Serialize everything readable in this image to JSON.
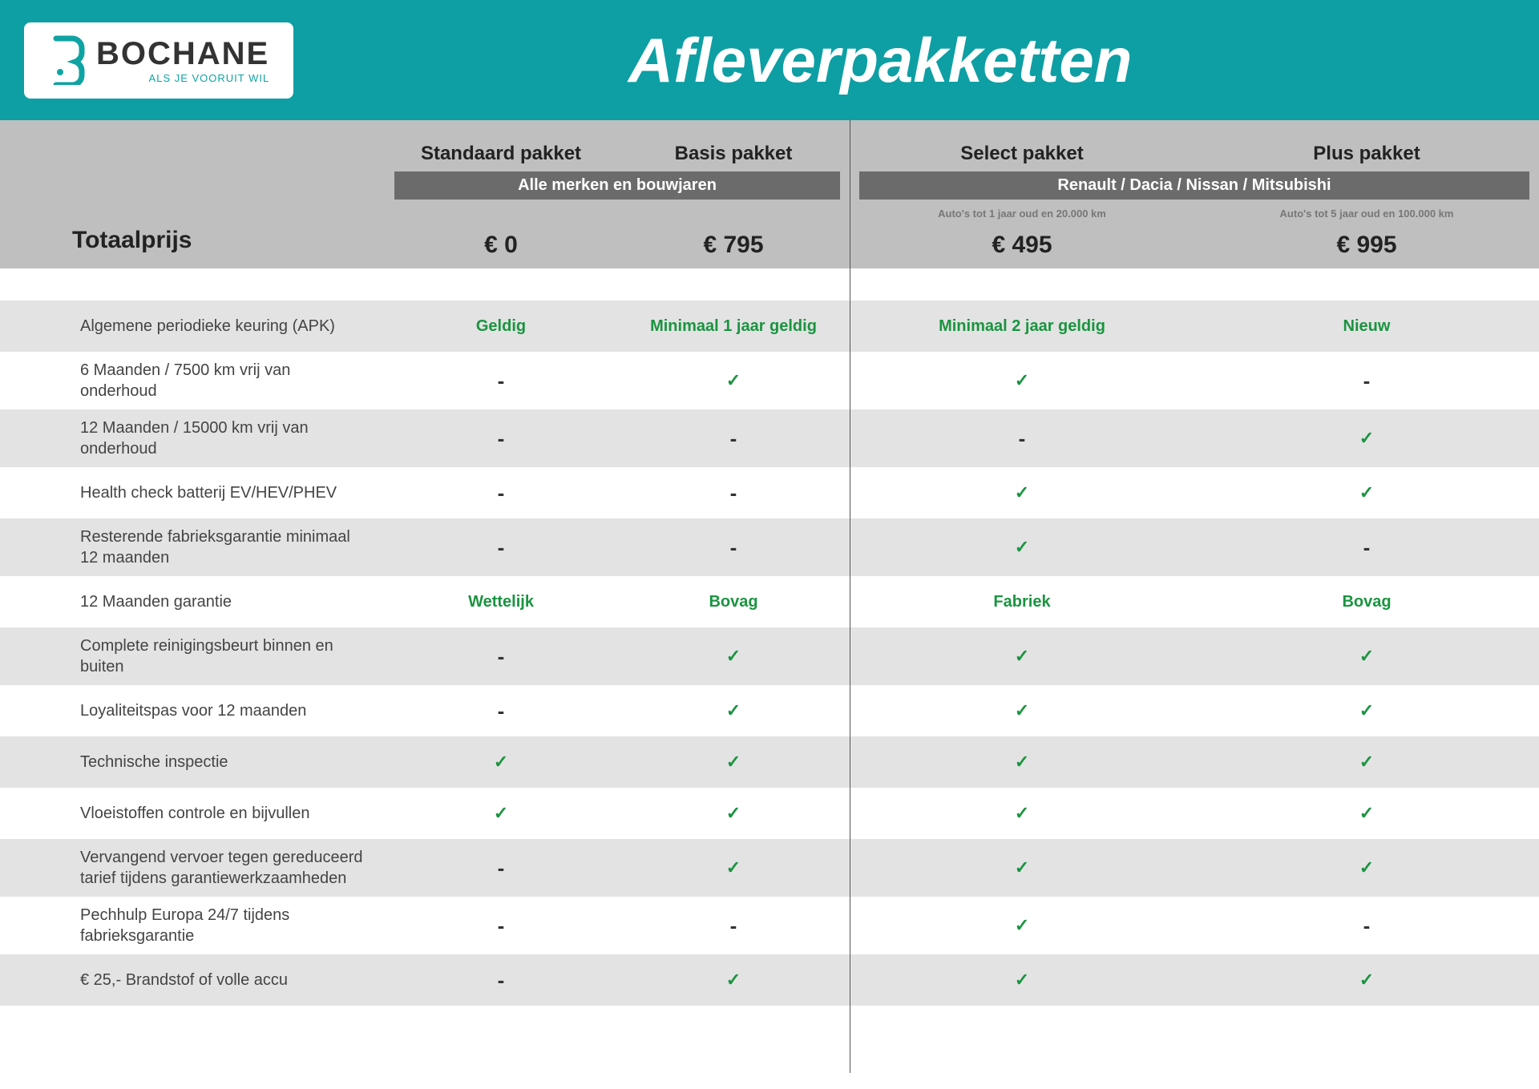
{
  "colors": {
    "header_bg": "#0d9fa3",
    "thead_bg": "#bfbfbf",
    "group_bar_bg": "#6b6b6b",
    "row_alt_bg": "#e3e3e3",
    "accent_green": "#1a9440",
    "text_dark": "#222222",
    "text_muted": "#555555"
  },
  "logo": {
    "name": "BOCHANE",
    "tagline": "ALS JE VOORUIT WIL"
  },
  "title": "Afleverpakketten",
  "row_header": "Totaalprijs",
  "columns": [
    {
      "name": "Standaard pakket",
      "subnote": "",
      "price": "€ 0"
    },
    {
      "name": "Basis pakket",
      "subnote": "",
      "price": "€ 795"
    },
    {
      "name": "Select pakket",
      "subnote": "Auto's tot 1 jaar oud en 20.000 km",
      "price": "€ 495"
    },
    {
      "name": "Plus pakket",
      "subnote": "Auto's tot 5 jaar oud en 100.000 km",
      "price": "€ 995"
    }
  ],
  "groups": [
    {
      "label": "Alle merken en bouwjaren",
      "span_cols": [
        0,
        1
      ]
    },
    {
      "label": "Renault / Dacia / Nissan / Mitsubishi",
      "span_cols": [
        2,
        3
      ]
    }
  ],
  "rows": [
    {
      "label": "Algemene periodieke keuring (APK)",
      "cells": [
        {
          "type": "text",
          "value": "Geldig"
        },
        {
          "type": "text",
          "value": "Minimaal 1 jaar geldig"
        },
        {
          "type": "text",
          "value": "Minimaal 2 jaar geldig"
        },
        {
          "type": "text",
          "value": "Nieuw"
        }
      ],
      "shade": true
    },
    {
      "label": "6 Maanden / 7500 km vrij van onderhoud",
      "cells": [
        {
          "type": "dash"
        },
        {
          "type": "check"
        },
        {
          "type": "check"
        },
        {
          "type": "dash"
        }
      ],
      "shade": false
    },
    {
      "label": "12 Maanden / 15000 km vrij van onderhoud",
      "cells": [
        {
          "type": "dash"
        },
        {
          "type": "dash"
        },
        {
          "type": "dash"
        },
        {
          "type": "check"
        }
      ],
      "shade": true
    },
    {
      "label": "Health check batterij EV/HEV/PHEV",
      "cells": [
        {
          "type": "dash"
        },
        {
          "type": "dash"
        },
        {
          "type": "check"
        },
        {
          "type": "check"
        }
      ],
      "shade": false
    },
    {
      "label": "Resterende fabrieksgarantie minimaal 12 maanden",
      "cells": [
        {
          "type": "dash"
        },
        {
          "type": "dash"
        },
        {
          "type": "check"
        },
        {
          "type": "dash"
        }
      ],
      "shade": true
    },
    {
      "label": "12 Maanden  garantie",
      "cells": [
        {
          "type": "text",
          "value": "Wettelijk"
        },
        {
          "type": "text",
          "value": "Bovag"
        },
        {
          "type": "text",
          "value": "Fabriek"
        },
        {
          "type": "text",
          "value": "Bovag"
        }
      ],
      "shade": false
    },
    {
      "label": "Complete reinigingsbeurt binnen en buiten",
      "cells": [
        {
          "type": "dash"
        },
        {
          "type": "check"
        },
        {
          "type": "check"
        },
        {
          "type": "check"
        }
      ],
      "shade": true
    },
    {
      "label": "Loyaliteitspas voor 12 maanden",
      "cells": [
        {
          "type": "dash"
        },
        {
          "type": "check"
        },
        {
          "type": "check"
        },
        {
          "type": "check"
        }
      ],
      "shade": false
    },
    {
      "label": "Technische inspectie",
      "cells": [
        {
          "type": "check"
        },
        {
          "type": "check"
        },
        {
          "type": "check"
        },
        {
          "type": "check"
        }
      ],
      "shade": true
    },
    {
      "label": "Vloeistoffen controle en bijvullen",
      "cells": [
        {
          "type": "check"
        },
        {
          "type": "check"
        },
        {
          "type": "check"
        },
        {
          "type": "check"
        }
      ],
      "shade": false
    },
    {
      "label": "Vervangend vervoer tegen gereduceerd tarief tijdens garantiewerkzaamheden",
      "cells": [
        {
          "type": "dash"
        },
        {
          "type": "check"
        },
        {
          "type": "check"
        },
        {
          "type": "check"
        }
      ],
      "shade": true
    },
    {
      "label": "Pechhulp Europa 24/7 tijdens fabrieksgarantie",
      "cells": [
        {
          "type": "dash"
        },
        {
          "type": "dash"
        },
        {
          "type": "check"
        },
        {
          "type": "dash"
        }
      ],
      "shade": false
    },
    {
      "label": "€ 25,- Brandstof of  volle accu",
      "cells": [
        {
          "type": "dash"
        },
        {
          "type": "check"
        },
        {
          "type": "check"
        },
        {
          "type": "check"
        }
      ],
      "shade": true
    }
  ]
}
